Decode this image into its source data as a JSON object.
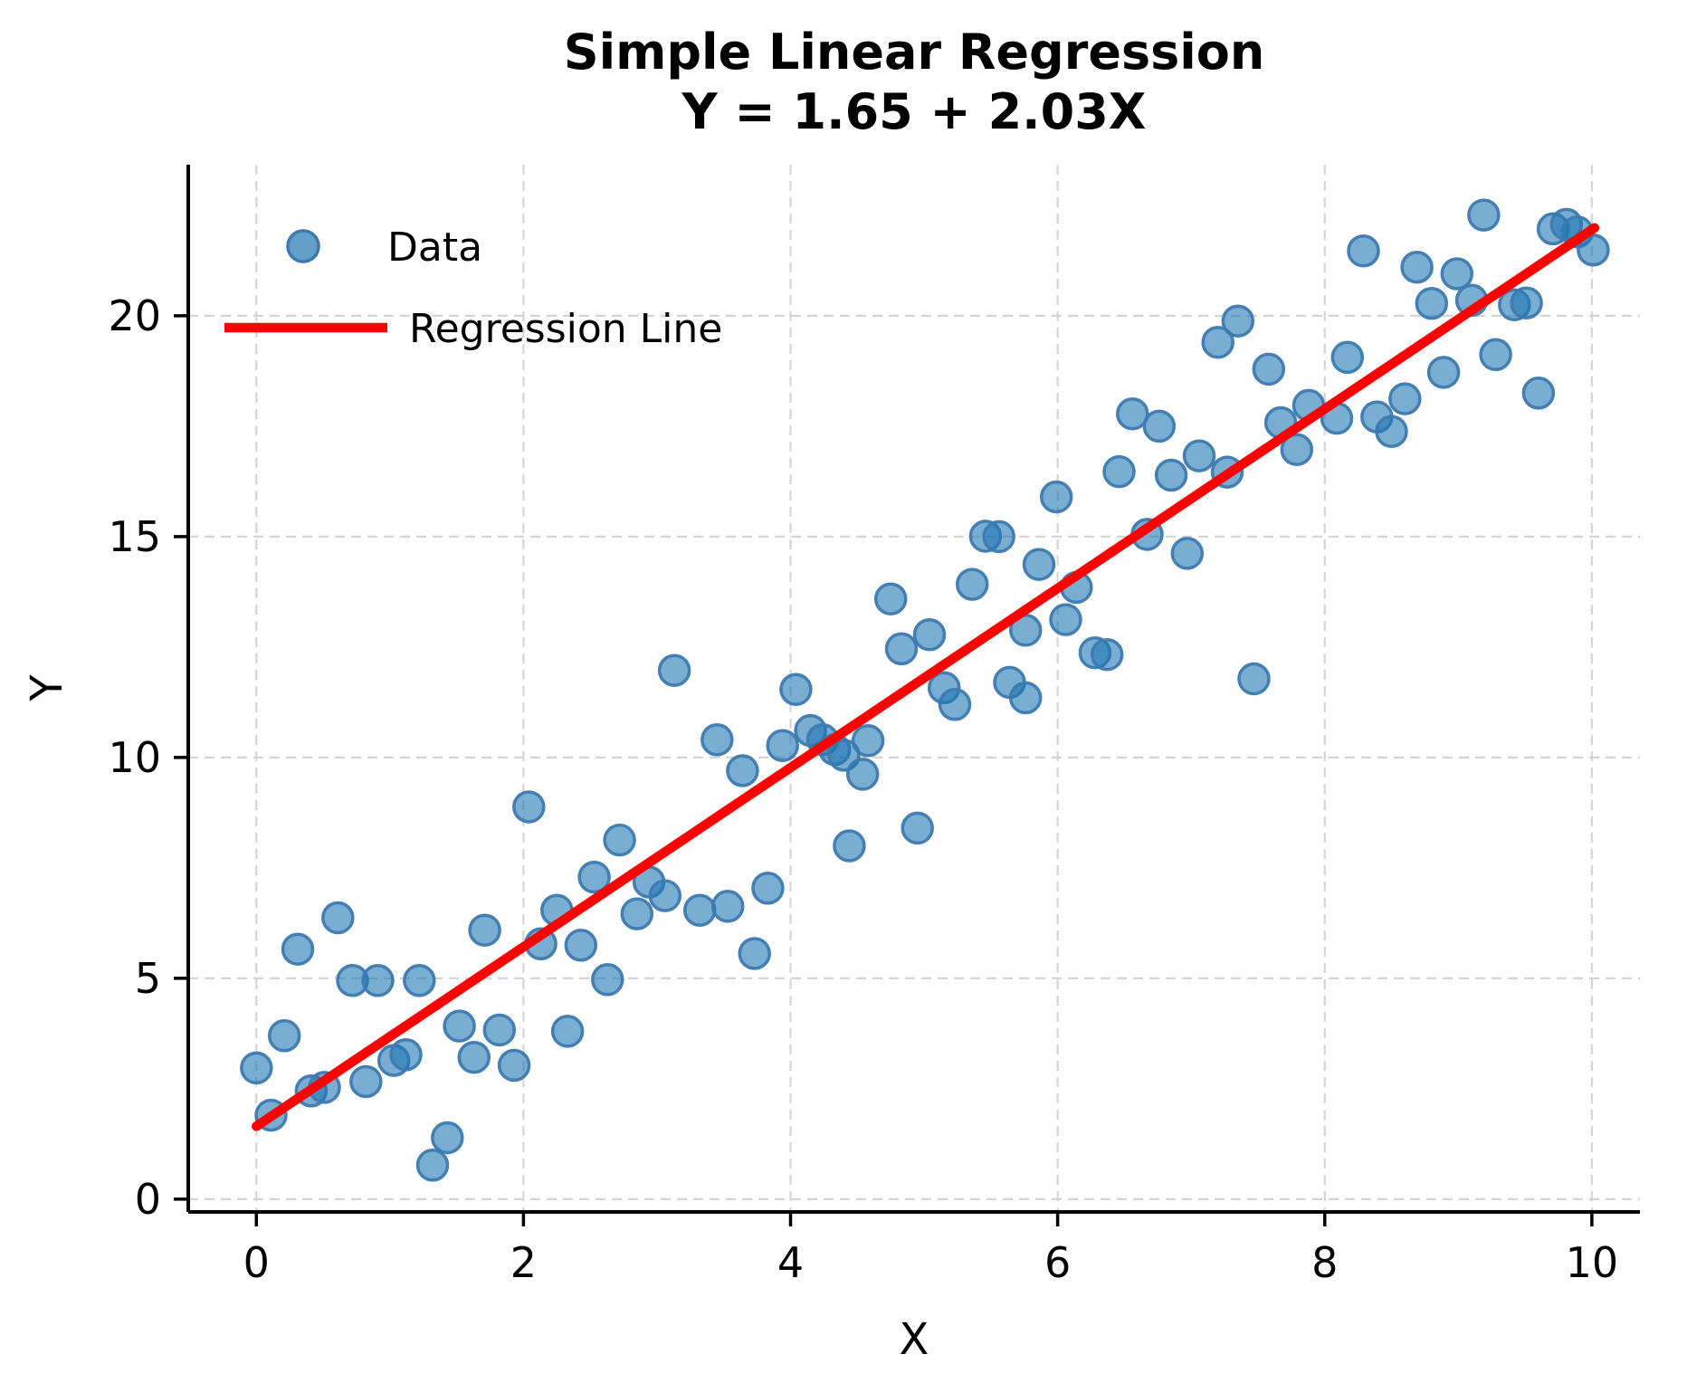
{
  "chart_data": {
    "type": "scatter",
    "title": "Simple Linear Regression",
    "subtitle": "Y = 1.65 + 2.03X",
    "xlabel": "X",
    "ylabel": "Y",
    "xlim": [
      -0.51,
      10.36
    ],
    "ylim": [
      -0.29,
      23.42
    ],
    "xticks": [
      0,
      2,
      4,
      6,
      8,
      10
    ],
    "xtick_labels": [
      "0",
      "2",
      "4",
      "6",
      "8",
      "10"
    ],
    "yticks": [
      0,
      5,
      10,
      15,
      20
    ],
    "ytick_labels": [
      "0",
      "5",
      "10",
      "15",
      "20"
    ],
    "grid": true,
    "legend_position": "upper-left",
    "legend": [
      {
        "label": "Data",
        "type": "marker"
      },
      {
        "label": "Regression Line",
        "type": "line"
      }
    ],
    "regression": {
      "intercept": 1.65,
      "slope": 2.03,
      "x_start": 0.0,
      "x_end": 10.02
    },
    "series": [
      {
        "name": "Data",
        "points": [
          [
            0.0,
            2.97
          ],
          [
            0.11,
            1.9
          ],
          [
            0.21,
            3.7
          ],
          [
            0.31,
            5.66
          ],
          [
            0.41,
            2.45
          ],
          [
            0.51,
            2.53
          ],
          [
            0.61,
            6.37
          ],
          [
            0.72,
            4.95
          ],
          [
            0.82,
            2.66
          ],
          [
            0.91,
            4.95
          ],
          [
            1.03,
            3.14
          ],
          [
            1.12,
            3.27
          ],
          [
            1.22,
            4.95
          ],
          [
            1.32,
            0.77
          ],
          [
            1.43,
            1.39
          ],
          [
            1.52,
            3.92
          ],
          [
            1.63,
            3.21
          ],
          [
            1.71,
            6.09
          ],
          [
            1.82,
            3.83
          ],
          [
            1.93,
            3.03
          ],
          [
            2.04,
            8.88
          ],
          [
            2.13,
            5.78
          ],
          [
            2.25,
            6.54
          ],
          [
            2.33,
            3.8
          ],
          [
            2.43,
            5.75
          ],
          [
            2.53,
            7.29
          ],
          [
            2.63,
            4.97
          ],
          [
            2.72,
            8.13
          ],
          [
            2.85,
            6.46
          ],
          [
            2.94,
            7.18
          ],
          [
            3.06,
            6.87
          ],
          [
            3.13,
            11.97
          ],
          [
            3.32,
            6.54
          ],
          [
            3.45,
            10.4
          ],
          [
            3.53,
            6.63
          ],
          [
            3.64,
            9.7
          ],
          [
            3.73,
            5.56
          ],
          [
            3.83,
            7.04
          ],
          [
            3.94,
            10.27
          ],
          [
            4.04,
            11.54
          ],
          [
            4.15,
            10.61
          ],
          [
            4.24,
            10.4
          ],
          [
            4.33,
            10.18
          ],
          [
            4.4,
            10.05
          ],
          [
            4.44,
            8.0
          ],
          [
            4.54,
            9.62
          ],
          [
            4.58,
            10.38
          ],
          [
            4.75,
            13.59
          ],
          [
            4.83,
            12.46
          ],
          [
            4.95,
            8.4
          ],
          [
            5.04,
            12.78
          ],
          [
            5.15,
            11.58
          ],
          [
            5.23,
            11.2
          ],
          [
            5.36,
            13.92
          ],
          [
            5.46,
            15.01
          ],
          [
            5.56,
            15.0
          ],
          [
            5.64,
            11.7
          ],
          [
            5.76,
            11.35
          ],
          [
            5.76,
            12.88
          ],
          [
            5.86,
            14.37
          ],
          [
            5.99,
            15.9
          ],
          [
            6.06,
            13.12
          ],
          [
            6.14,
            13.85
          ],
          [
            6.28,
            12.37
          ],
          [
            6.37,
            12.33
          ],
          [
            6.46,
            16.47
          ],
          [
            6.56,
            17.78
          ],
          [
            6.67,
            15.05
          ],
          [
            6.76,
            17.5
          ],
          [
            6.85,
            16.39
          ],
          [
            6.97,
            14.62
          ],
          [
            7.06,
            16.83
          ],
          [
            7.2,
            19.4
          ],
          [
            7.27,
            16.46
          ],
          [
            7.35,
            19.88
          ],
          [
            7.47,
            11.78
          ],
          [
            7.58,
            18.79
          ],
          [
            7.67,
            17.58
          ],
          [
            7.79,
            16.97
          ],
          [
            7.88,
            17.97
          ],
          [
            8.09,
            17.68
          ],
          [
            8.17,
            19.06
          ],
          [
            8.29,
            21.47
          ],
          [
            8.39,
            17.71
          ],
          [
            8.5,
            17.38
          ],
          [
            8.6,
            18.12
          ],
          [
            8.69,
            21.1
          ],
          [
            8.8,
            20.28
          ],
          [
            8.89,
            18.72
          ],
          [
            8.99,
            20.95
          ],
          [
            9.1,
            20.35
          ],
          [
            9.19,
            22.28
          ],
          [
            9.28,
            19.12
          ],
          [
            9.42,
            20.25
          ],
          [
            9.51,
            20.29
          ],
          [
            9.6,
            18.25
          ],
          [
            9.71,
            21.97
          ],
          [
            9.81,
            22.07
          ],
          [
            9.89,
            21.9
          ],
          [
            10.01,
            21.49
          ]
        ]
      }
    ],
    "colors": {
      "point_fill": "#1f77b4",
      "point_fill_opacity": 0.6,
      "point_edge": "#3d7ab0",
      "regression_line": "#ff0000",
      "grid": "#d5d5d5",
      "spine": "#000000",
      "text": "#000000",
      "background": "#ffffff"
    }
  }
}
